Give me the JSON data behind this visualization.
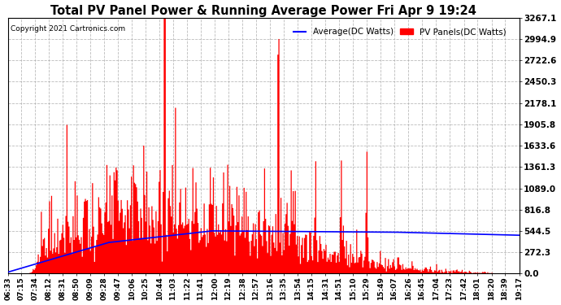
{
  "title": "Total PV Panel Power & Running Average Power Fri Apr 9 19:24",
  "copyright": "Copyright 2021 Cartronics.com",
  "legend_avg": "Average(DC Watts)",
  "legend_pv": "PV Panels(DC Watts)",
  "yticks": [
    0.0,
    272.3,
    544.5,
    816.8,
    1089.0,
    1361.3,
    1633.6,
    1905.8,
    2178.1,
    2450.3,
    2722.6,
    2994.9,
    3267.1
  ],
  "ymax": 3267.1,
  "ymin": 0.0,
  "bg_color": "#ffffff",
  "plot_bg_color": "#ffffff",
  "grid_color": "#aaaaaa",
  "bar_color": "#ff0000",
  "avg_color": "#0000ff",
  "title_color": "#000000",
  "copyright_color": "#000000",
  "n_points": 500,
  "x_labels": [
    "06:33",
    "07:15",
    "07:34",
    "08:12",
    "08:31",
    "08:50",
    "09:09",
    "09:28",
    "09:47",
    "10:06",
    "10:25",
    "10:44",
    "11:03",
    "11:22",
    "11:41",
    "12:00",
    "12:19",
    "12:38",
    "12:57",
    "13:16",
    "13:35",
    "13:54",
    "14:15",
    "14:31",
    "14:51",
    "15:10",
    "15:29",
    "15:49",
    "16:07",
    "16:26",
    "16:45",
    "17:04",
    "17:23",
    "17:42",
    "18:01",
    "18:20",
    "18:39",
    "19:17"
  ]
}
